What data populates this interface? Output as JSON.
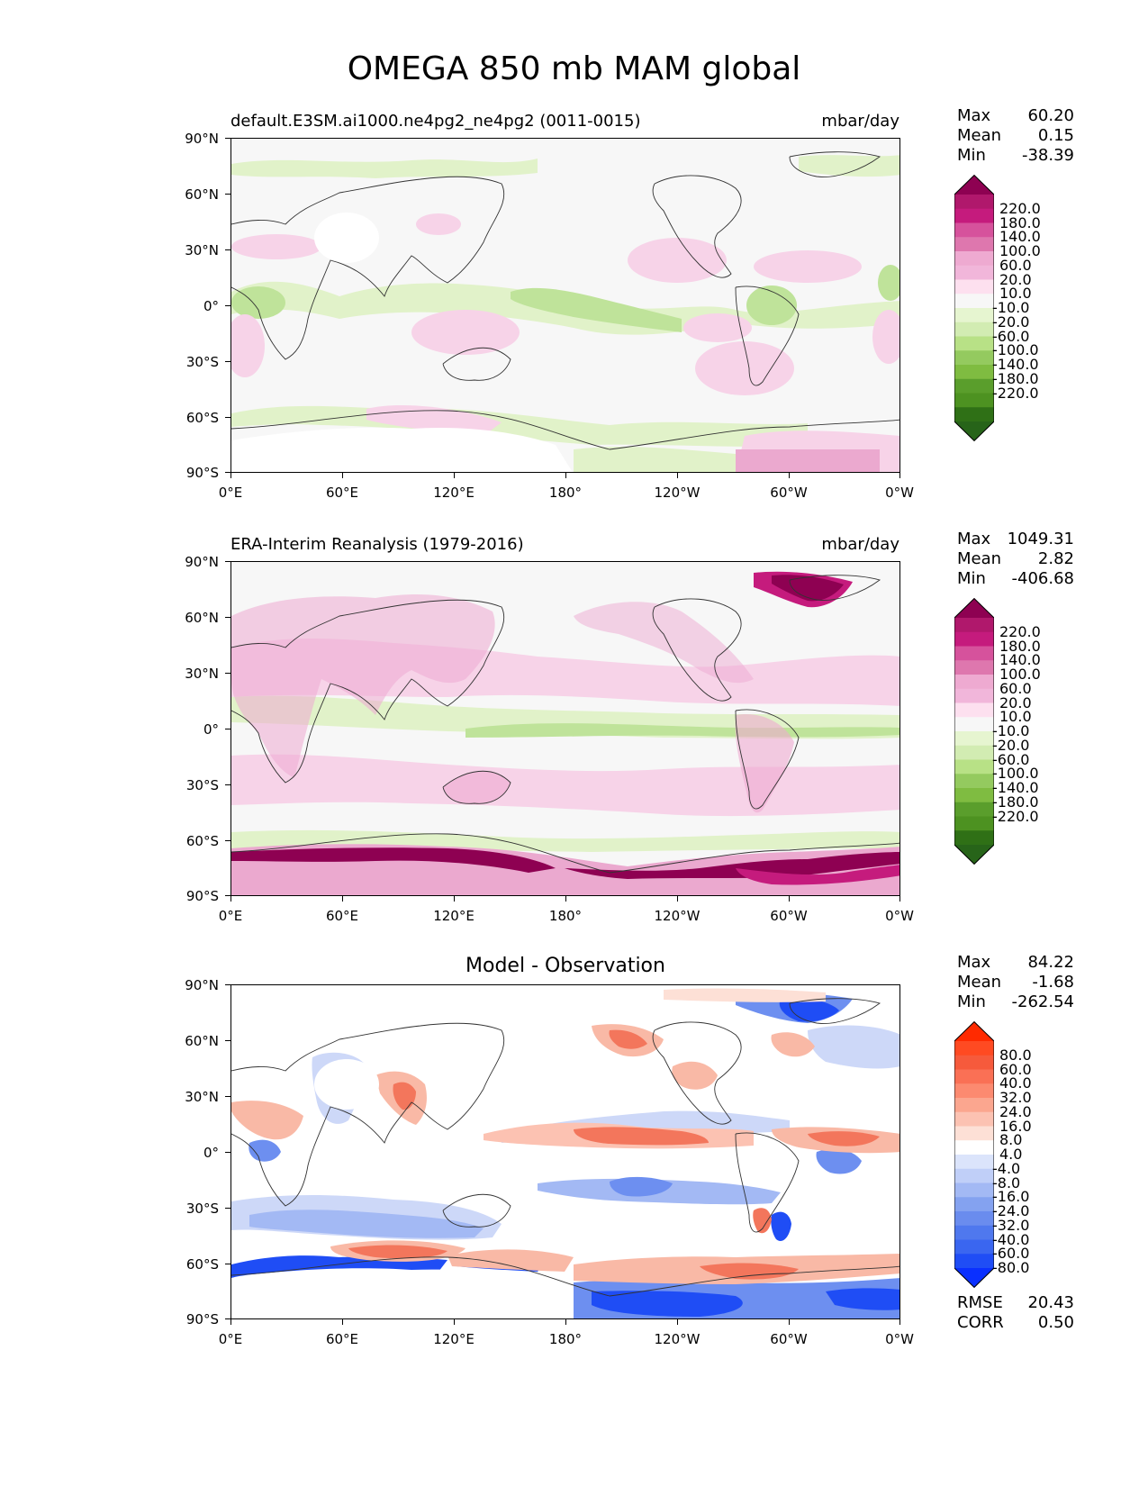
{
  "title": "OMEGA 850 mb MAM global",
  "lat_labels": [
    "90°N",
    "60°N",
    "30°N",
    "0°",
    "30°S",
    "60°S",
    "90°S"
  ],
  "lon_labels": [
    "0°E",
    "60°E",
    "120°E",
    "180°",
    "120°W",
    "60°W",
    "0°W"
  ],
  "panels": [
    {
      "title_left": "default.E3SM.ai1000.ne4pg2_ne4pg2 (0011-0015)",
      "title_right": "mbar/day",
      "stats": [
        {
          "label": "Max",
          "value": "60.20"
        },
        {
          "label": "Mean",
          "value": "0.15"
        },
        {
          "label": "Min",
          "value": "-38.39"
        }
      ],
      "colorbar_labels": [
        "220.0",
        "180.0",
        "140.0",
        "100.0",
        "60.0",
        "20.0",
        "10.0",
        "-10.0",
        "-20.0",
        "-60.0",
        "-100.0",
        "-140.0",
        "-180.0",
        "-220.0"
      ],
      "colorbar_colors": [
        "#8e0152",
        "#b0186c",
        "#c51b7d",
        "#d6529c",
        "#de77ae",
        "#eeaad1",
        "#f1b6da",
        "#fde0ef",
        "#f7f7f7",
        "#e6f5d0",
        "#d2ecb2",
        "#b8e186",
        "#94ca5f",
        "#7fbc41",
        "#5a9e2c",
        "#4d9221",
        "#2f7016",
        "#276419"
      ]
    },
    {
      "title_left": "ERA-Interim Reanalysis (1979-2016)",
      "title_right": "mbar/day",
      "stats": [
        {
          "label": "Max",
          "value": "1049.31"
        },
        {
          "label": "Mean",
          "value": "2.82"
        },
        {
          "label": "Min",
          "value": "-406.68"
        }
      ],
      "colorbar_labels": [
        "220.0",
        "180.0",
        "140.0",
        "100.0",
        "60.0",
        "20.0",
        "10.0",
        "-10.0",
        "-20.0",
        "-60.0",
        "-100.0",
        "-140.0",
        "-180.0",
        "-220.0"
      ],
      "colorbar_colors": [
        "#8e0152",
        "#b0186c",
        "#c51b7d",
        "#d6529c",
        "#de77ae",
        "#eeaad1",
        "#f1b6da",
        "#fde0ef",
        "#f7f7f7",
        "#e6f5d0",
        "#d2ecb2",
        "#b8e186",
        "#94ca5f",
        "#7fbc41",
        "#5a9e2c",
        "#4d9221",
        "#2f7016",
        "#276419"
      ]
    },
    {
      "title_center": "Model - Observation",
      "stats": [
        {
          "label": "Max",
          "value": "84.22"
        },
        {
          "label": "Mean",
          "value": "-1.68"
        },
        {
          "label": "Min",
          "value": "-262.54"
        }
      ],
      "colorbar_labels": [
        "80.0",
        "60.0",
        "40.0",
        "32.0",
        "24.0",
        "16.0",
        "8.0",
        "4.0",
        "-4.0",
        "-8.0",
        "-16.0",
        "-24.0",
        "-32.0",
        "-40.0",
        "-60.0",
        "-80.0"
      ],
      "colorbar_colors": [
        "#ff2a00",
        "#ff4a22",
        "#f65a3c",
        "#fa7055",
        "#fc8a70",
        "#fba68f",
        "#fcc2b2",
        "#fde0d6",
        "#ffffff",
        "#dbe4fb",
        "#c0cff8",
        "#a3b9f4",
        "#84a2f0",
        "#6a8cee",
        "#4f78ee",
        "#3a66f0",
        "#1f4df5",
        "#0a30ff"
      ],
      "metrics": [
        {
          "label": "RMSE",
          "value": "20.43"
        },
        {
          "label": "CORR",
          "value": "0.50"
        }
      ]
    }
  ],
  "colors": {
    "pink_light": "#f7d3e8",
    "pink_mid": "#eba9cf",
    "magenta_dark": "#8e0152",
    "green_light": "#e1f2c9",
    "green_mid": "#bfe39a",
    "red_light": "#f9b9a6",
    "red_mid": "#f3765c",
    "blue_light": "#cdd8f8",
    "blue_mid": "#6d8ff0",
    "blue_dark": "#1f4df5"
  }
}
